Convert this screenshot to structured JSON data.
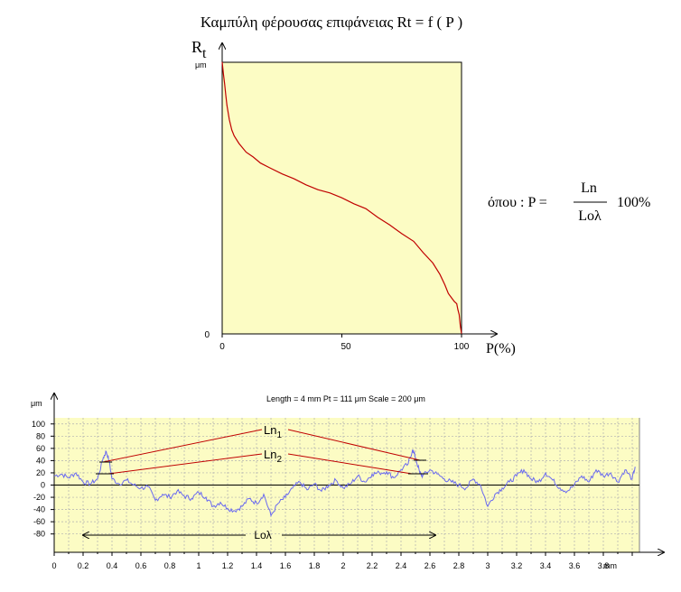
{
  "chart_data": [
    {
      "type": "line",
      "title": "Καμπύλη φέρουσας επιφάνειας Rt = f ( P )",
      "ylabel_main": "R",
      "ylabel_sub": "t",
      "yunit": "μm",
      "xlabel": "P(%)",
      "xlim": [
        0,
        100
      ],
      "ylim": [
        0,
        100
      ],
      "x_ticks": [
        "0",
        "50",
        "100"
      ],
      "y_ticks": [
        "0"
      ],
      "grid": false,
      "background": "#fcfcc4",
      "line_color": "#c00000",
      "series": [
        {
          "x": [
            0,
            0.5,
            1,
            1.5,
            2,
            3,
            4,
            5,
            7,
            10,
            13,
            16,
            20,
            25,
            30,
            35,
            40,
            45,
            50,
            55,
            60,
            65,
            70,
            75,
            80,
            84,
            88,
            91,
            93,
            94.5,
            96,
            97,
            98,
            98.5,
            99,
            99.5,
            100
          ],
          "y": [
            100,
            96,
            92,
            88,
            84,
            79,
            75,
            73,
            70,
            67,
            65,
            63,
            61,
            59,
            57,
            55,
            53,
            52,
            50,
            48,
            46,
            43,
            40,
            37,
            34,
            30,
            26,
            22,
            18,
            15,
            13,
            12,
            11,
            9,
            7,
            3,
            0
          ]
        }
      ]
    },
    {
      "type": "line",
      "title": "Length = 4 mm  Pt = 111 μm  Scale = 200 μm",
      "yunit": "μm",
      "xunit": "mm",
      "xlim": [
        0,
        4.05
      ],
      "ylim": [
        -110,
        110
      ],
      "y_ticks": [
        100,
        80,
        60,
        40,
        20,
        0,
        -20,
        -40,
        -60,
        -80
      ],
      "x_ticks": [
        "0",
        "0.2",
        "0.4",
        "0.6",
        "0.8",
        "1",
        "1.2",
        "1.4",
        "1.6",
        "1.8",
        "2",
        "2.2",
        "2.4",
        "2.6",
        "2.8",
        "3",
        "3.2",
        "3.4",
        "3.6",
        "3.8"
      ],
      "grid": true,
      "background": "#fcfcc4",
      "line_color": "#6a6af0",
      "series": [
        {
          "x": [
            0,
            0.05,
            0.1,
            0.15,
            0.2,
            0.25,
            0.3,
            0.34,
            0.36,
            0.38,
            0.4,
            0.45,
            0.5,
            0.55,
            0.6,
            0.65,
            0.7,
            0.75,
            0.8,
            0.85,
            0.9,
            0.95,
            1,
            1.05,
            1.1,
            1.15,
            1.2,
            1.25,
            1.3,
            1.35,
            1.4,
            1.45,
            1.5,
            1.55,
            1.6,
            1.65,
            1.7,
            1.75,
            1.8,
            1.85,
            1.9,
            1.95,
            2,
            2.05,
            2.1,
            2.15,
            2.2,
            2.25,
            2.3,
            2.35,
            2.4,
            2.45,
            2.48,
            2.5,
            2.53,
            2.55,
            2.6,
            2.65,
            2.7,
            2.75,
            2.8,
            2.85,
            2.9,
            2.95,
            3,
            3.05,
            3.1,
            3.15,
            3.2,
            3.25,
            3.3,
            3.35,
            3.4,
            3.45,
            3.5,
            3.55,
            3.6,
            3.65,
            3.7,
            3.75,
            3.8,
            3.85,
            3.9,
            3.95,
            4.0,
            4.02
          ],
          "y": [
            15,
            18,
            12,
            20,
            5,
            2,
            10,
            45,
            55,
            40,
            10,
            2,
            8,
            0,
            -5,
            -3,
            -25,
            -15,
            -20,
            -10,
            -18,
            -22,
            -12,
            -20,
            -35,
            -28,
            -38,
            -42,
            -35,
            -22,
            -30,
            -15,
            -50,
            -30,
            -20,
            -5,
            5,
            -8,
            2,
            -10,
            0,
            8,
            -5,
            2,
            15,
            5,
            18,
            20,
            22,
            12,
            25,
            35,
            58,
            45,
            20,
            15,
            25,
            18,
            10,
            5,
            0,
            -5,
            10,
            0,
            -35,
            -15,
            -5,
            5,
            15,
            25,
            10,
            5,
            20,
            8,
            -5,
            -10,
            0,
            15,
            5,
            25,
            15,
            20,
            5,
            25,
            10,
            30
          ]
        }
      ]
    }
  ],
  "annotations": {
    "ln1_main": "Ln",
    "ln1_sub": "1",
    "ln2_main": "Ln",
    "ln2_sub": "2",
    "lo_lambda": "Loλ"
  },
  "formula": {
    "prefix": "όπου :  P =",
    "numerator": "Ln",
    "denominator": "Loλ",
    "suffix": "100%"
  }
}
